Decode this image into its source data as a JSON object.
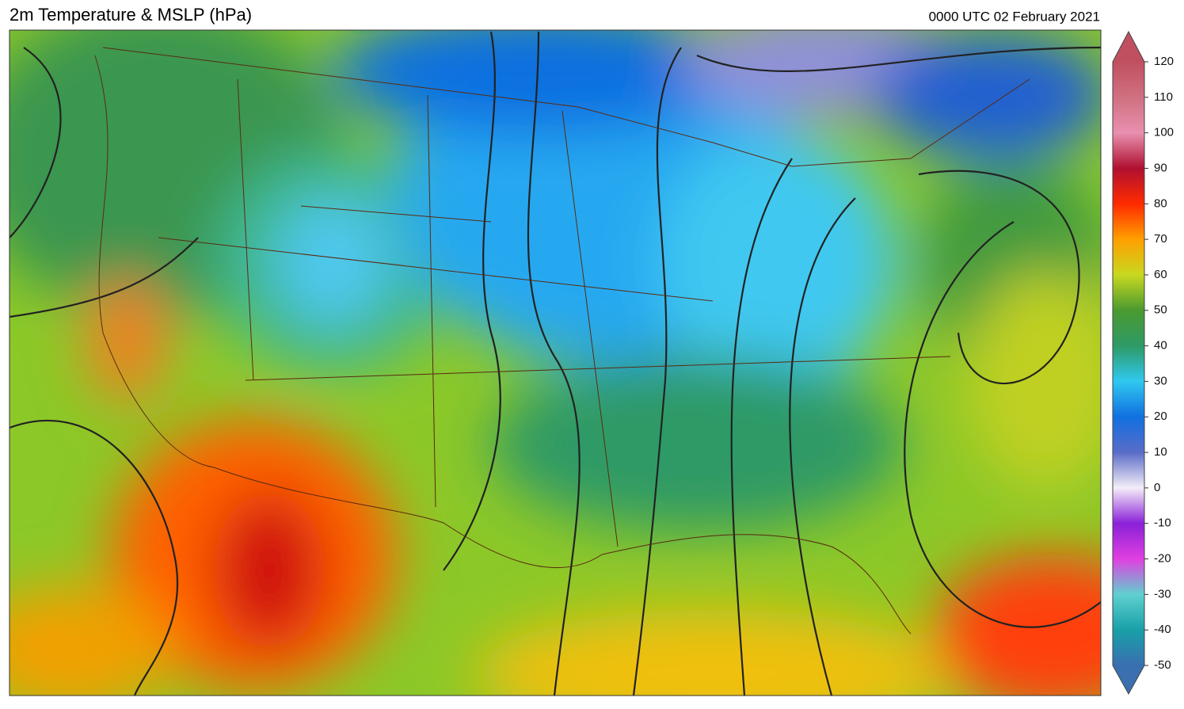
{
  "header": {
    "title": "2m Temperature & MSLP (hPa)",
    "timestamp": "0000 UTC 02 February 2021"
  },
  "colorbar": {
    "lim": [
      -50,
      120
    ],
    "ticks": [
      -50,
      -40,
      -30,
      -20,
      -10,
      0,
      10,
      20,
      30,
      40,
      50,
      60,
      70,
      80,
      90,
      100,
      110,
      120
    ],
    "colors": [
      "#3a6fb0",
      "#18a0a8",
      "#60d0d0",
      "#e040e0",
      "#8a20d8",
      "#f4eef8",
      "#5a6cc8",
      "#1070e0",
      "#30c8f0",
      "#2e9a66",
      "#4a9a30",
      "#c8d820",
      "#ffa000",
      "#ff2a00",
      "#b01030",
      "#e890b0",
      "#d07080",
      "#c05060"
    ]
  }
}
